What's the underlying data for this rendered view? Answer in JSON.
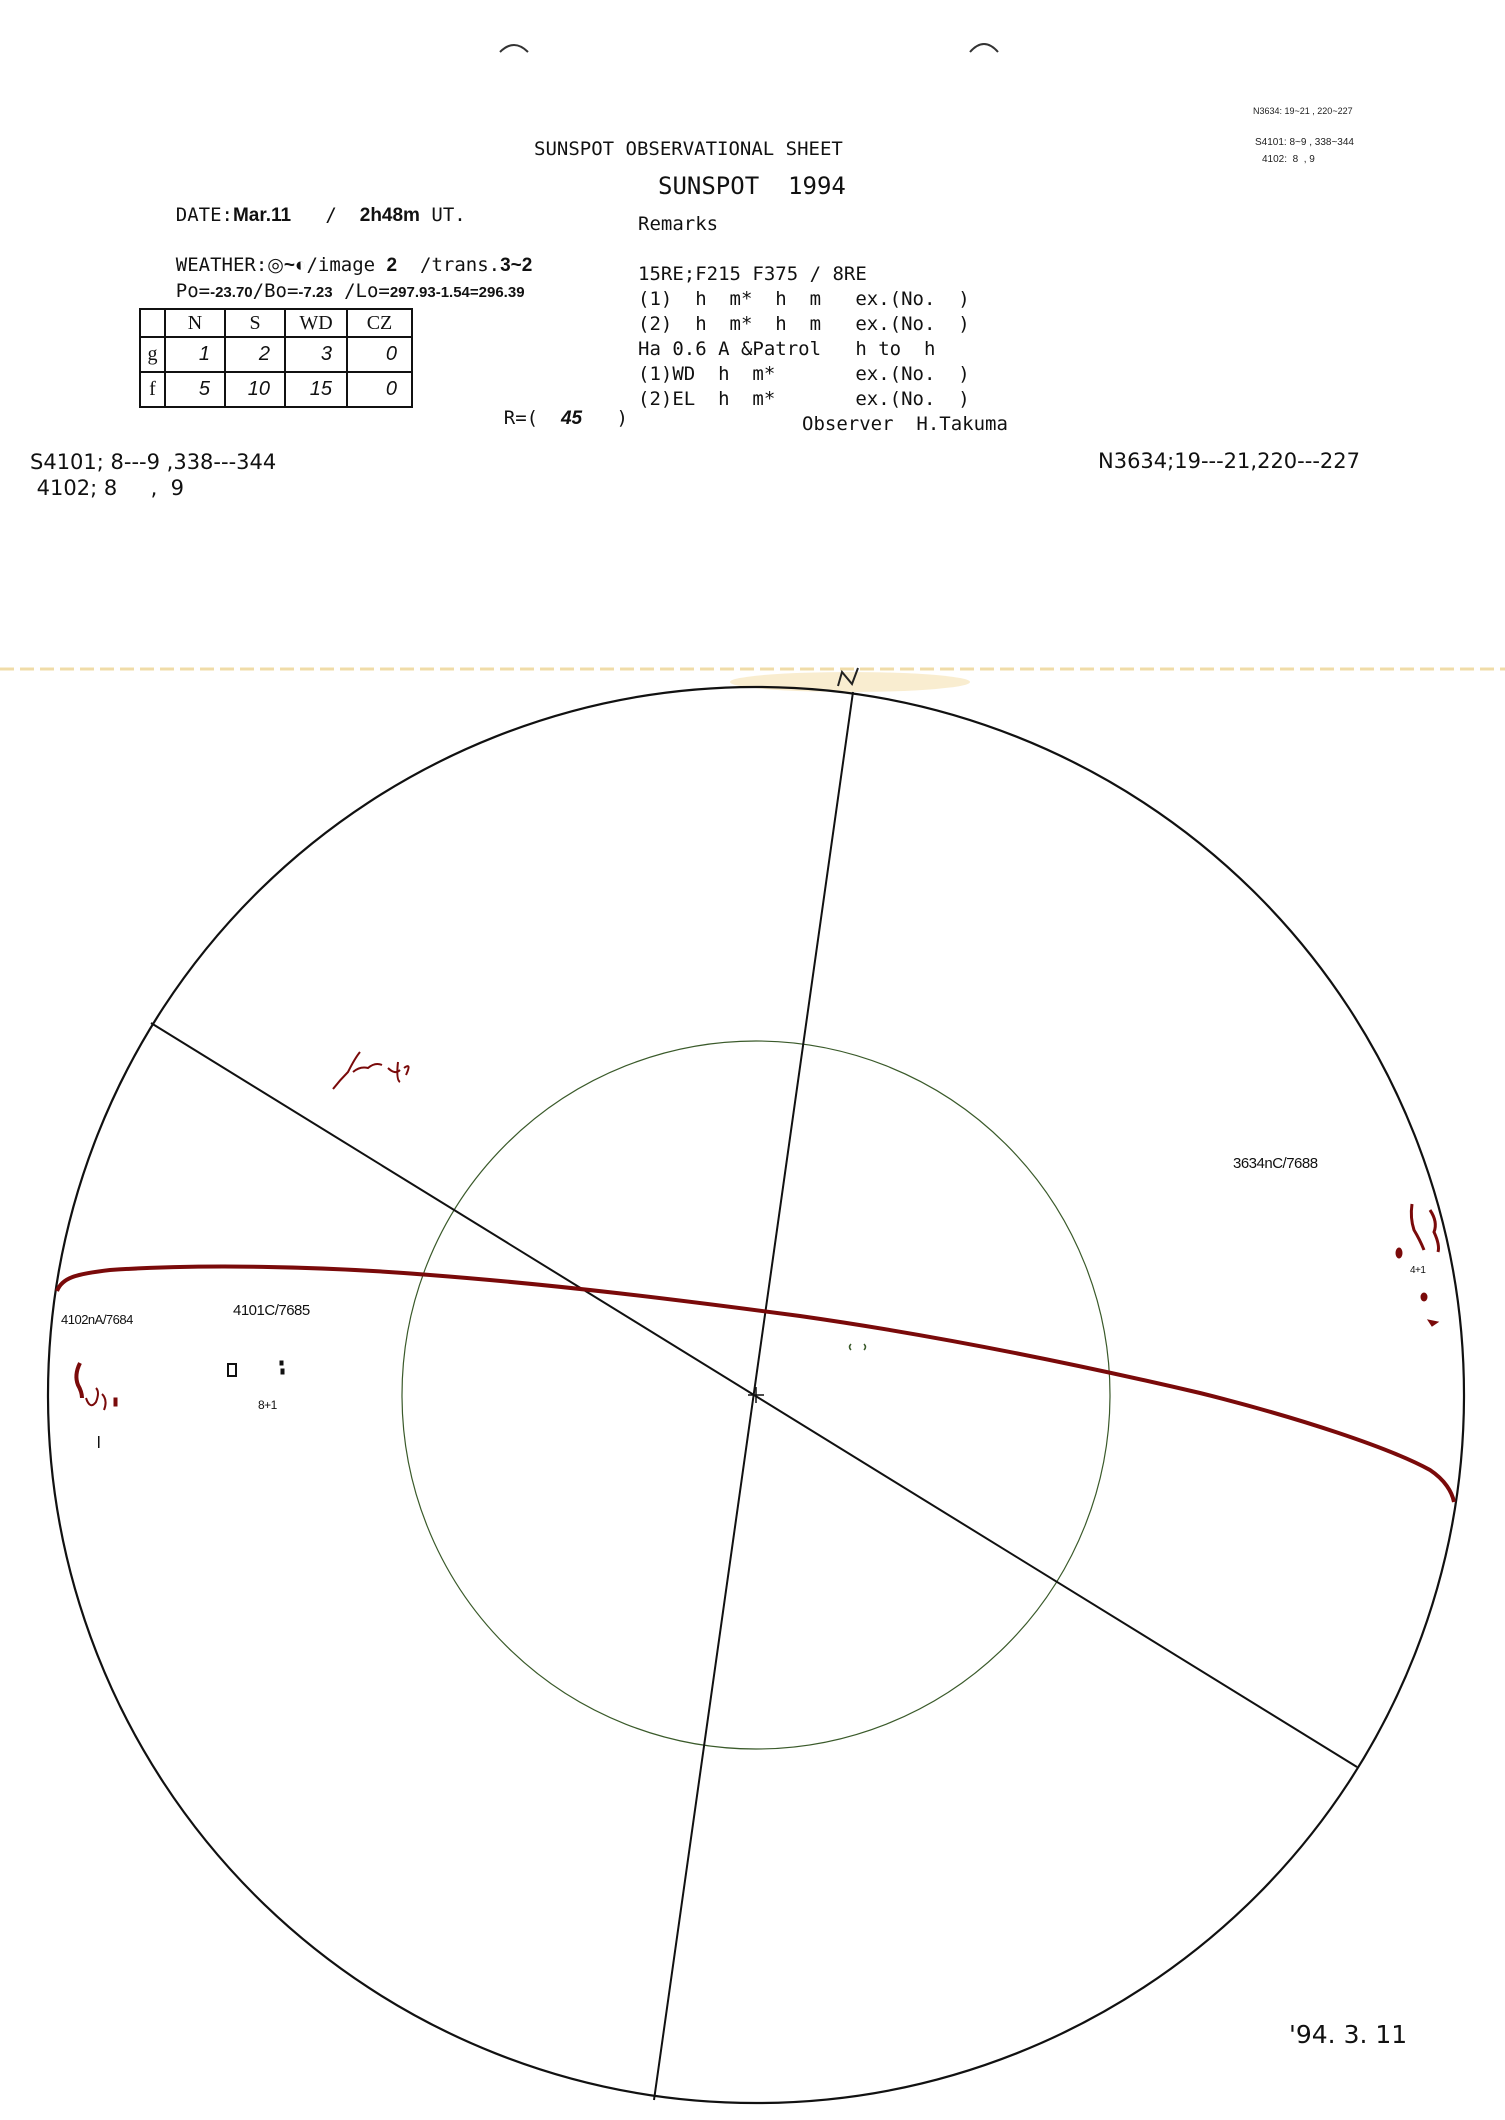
{
  "header": {
    "sheet_title": "SUNSPOT OBSERVATIONAL SHEET",
    "subtitle": "SUNSPOT  1994",
    "date_label": "DATE:",
    "date_value": "Mar.11",
    "time_sep": "/",
    "time_value": "2h48m",
    "time_unit": "UT.",
    "weather_label": "WEATHER:",
    "weather_value": "◎~◐",
    "image_label": "/image",
    "image_value": "2",
    "trans_label": "/trans.",
    "trans_value": "3~2",
    "po_label": "Po=",
    "po_value": "-23.70",
    "bo_label": "/Bo=",
    "bo_value": "-7.23",
    "lo_label": "/Lo=",
    "lo_value": "297.93-1.54=296.39"
  },
  "top_right_notes": [
    "N3634: 19~21 , 220~227",
    "S4101: 8~9 , 338~344",
    "4102:  8  , 9"
  ],
  "counts_table": {
    "columns": [
      "",
      "N",
      "S",
      "WD",
      "CZ"
    ],
    "rows": [
      {
        "label": "g",
        "values": [
          "1",
          "2",
          "3",
          "0"
        ]
      },
      {
        "label": "f",
        "values": [
          "5",
          "10",
          "15",
          "0"
        ]
      }
    ]
  },
  "r_value": {
    "label": "R=(",
    "value": "45",
    "close": ")"
  },
  "remarks": {
    "title": "Remarks",
    "lines": [
      "15RE;F215 F375 / 8RE",
      "(1)  h  m*  h  m   ex.(No.  )",
      "(2)  h  m*  h  m   ex.(No.  )",
      "Ha 0.6 A &Patrol   h to  h",
      "(1)WD  h  m*       ex.(No.  )",
      "(2)EL  h  m*       ex.(No.  )"
    ],
    "observer": "Observer  H.Takuma"
  },
  "region_notes_left": [
    "S4101; 8---9 ,338---344",
    " 4102; 8     ,  9"
  ],
  "region_note_right": "N3634;19---21,220---227",
  "disk": {
    "north_mark": "N",
    "spot_labels": {
      "g4102": "4102nA/7684",
      "g4101": "4101C/7685",
      "g4101_count": "8+1",
      "g3634": "3634nC/7688",
      "g3634_count": "4+1"
    },
    "colors": {
      "ink": "#111111",
      "spot": "#7a0a0a",
      "inner_circle": "#3a5a2a",
      "paper_stain": "#f3dfb0"
    }
  },
  "footer_date": "'94. 3. 11"
}
